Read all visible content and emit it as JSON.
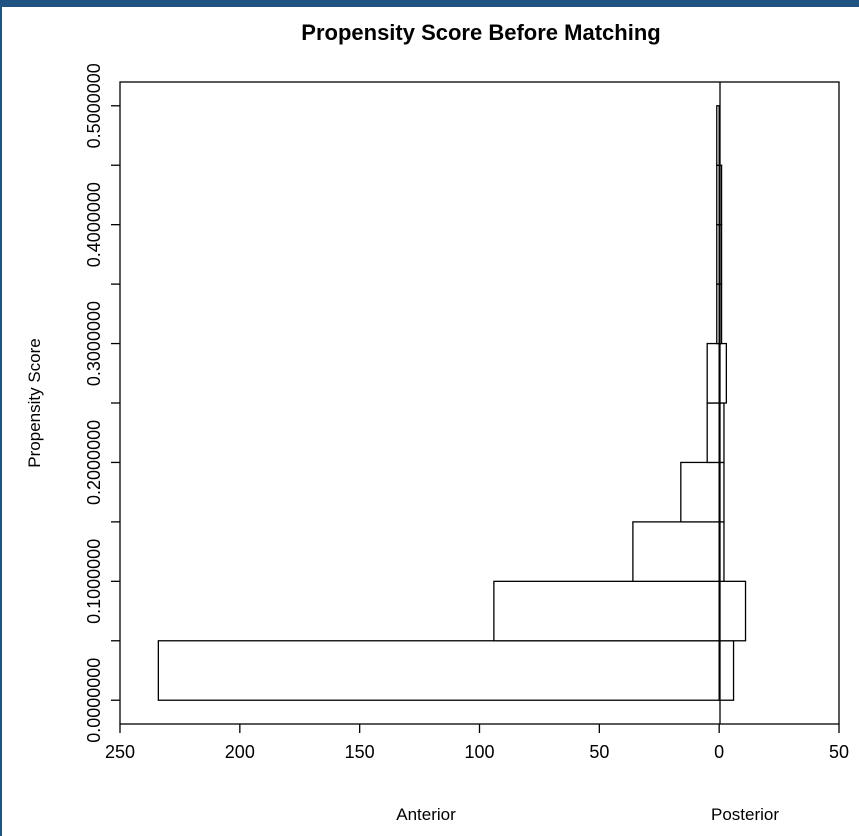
{
  "colors": {
    "top_bar": "#1f5482",
    "stroke": "#000000",
    "bar_fill": "#ffffff"
  },
  "chart_data": {
    "type": "bar",
    "orientation": "horizontal-back-to-back",
    "title": "Propensity Score Before Matching",
    "ylabel": "Propensity Score",
    "groups": [
      "Anterior",
      "Posterior"
    ],
    "xlim": [
      -250,
      50
    ],
    "ylim": [
      -0.02,
      0.52
    ],
    "x_ticks": [
      -250,
      -200,
      -150,
      -100,
      -50,
      0,
      50
    ],
    "x_tick_labels": [
      "250",
      "200",
      "150",
      "100",
      "50",
      "0",
      "50"
    ],
    "y_ticks": [
      0,
      0.1,
      0.2,
      0.3,
      0.4,
      0.5
    ],
    "y_tick_labels": [
      "0.0000000",
      "0.1000000",
      "0.2000000",
      "0.3000000",
      "0.4000000",
      "0.5000000"
    ],
    "y_minor_ticks": [
      0.05,
      0.15,
      0.25,
      0.35,
      0.45
    ],
    "bins": [
      {
        "lower": 0.0,
        "upper": 0.05
      },
      {
        "lower": 0.05,
        "upper": 0.1
      },
      {
        "lower": 0.1,
        "upper": 0.15
      },
      {
        "lower": 0.15,
        "upper": 0.2
      },
      {
        "lower": 0.2,
        "upper": 0.25
      },
      {
        "lower": 0.25,
        "upper": 0.3
      },
      {
        "lower": 0.3,
        "upper": 0.35
      },
      {
        "lower": 0.35,
        "upper": 0.4
      },
      {
        "lower": 0.4,
        "upper": 0.45
      },
      {
        "lower": 0.45,
        "upper": 0.5
      }
    ],
    "series": [
      {
        "name": "Anterior",
        "values": [
          234,
          94,
          36,
          16,
          5,
          5,
          1,
          1,
          1,
          1
        ]
      },
      {
        "name": "Posterior",
        "values": [
          6,
          11,
          2,
          2,
          2,
          3,
          1,
          1,
          1,
          0
        ]
      }
    ],
    "grid": false,
    "legend": "none"
  }
}
